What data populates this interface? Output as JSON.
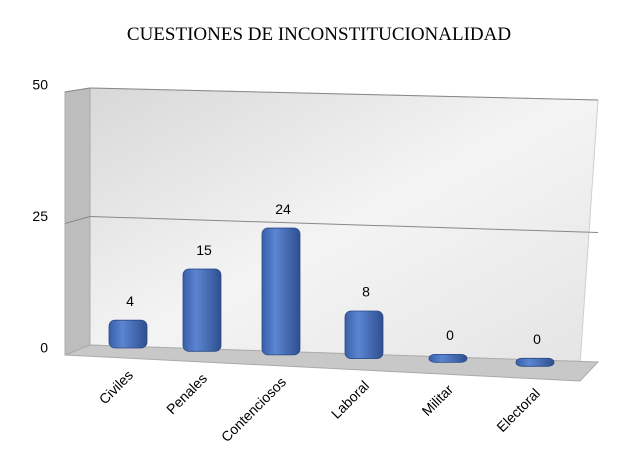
{
  "chart_data": {
    "type": "bar3d",
    "title": "CUESTIONES DE INCONSTITUCIONALIDAD",
    "categories": [
      "Civiles",
      "Penales",
      "Contenciosos",
      "Laboral",
      "Militar",
      "Electoral"
    ],
    "values": [
      4,
      15,
      24,
      8,
      0,
      0
    ],
    "color": "#4a72c0",
    "ylim": [
      0,
      50
    ],
    "yticks": [
      0,
      25,
      50
    ],
    "grid": true
  }
}
